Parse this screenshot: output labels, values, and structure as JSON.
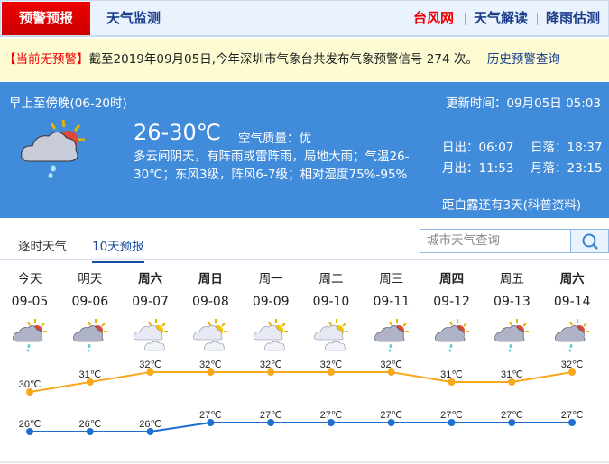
{
  "nav": {
    "warn_tab": "预警预报",
    "monitor_tab": "天气监测",
    "links": [
      {
        "label": "台风网",
        "color": "#ee0000"
      },
      {
        "label": "天气解读",
        "color": "#1a3e8c"
      },
      {
        "label": "降雨估测",
        "color": "#1a3e8c"
      }
    ]
  },
  "warning": {
    "status": "【当前无预警】",
    "text": "截至2019年09月05日,今年深圳市气象台共发布气象预警信号 274 次。",
    "history_link": "历史预警查询"
  },
  "today": {
    "period": "早上至傍晚(06-20时)",
    "updated": "更新时间：09月05日 05:03",
    "temp": "26-30℃",
    "air_quality": "空气质量：优",
    "desc": "多云间阴天，有阵雨或雷阵雨，局地大雨；气温26-30℃；东风3级，阵风6-7级；相对湿度75%-95%",
    "sunrise": "日出：06:07",
    "sunset": "日落：18:37",
    "moonrise": "月出：11:53",
    "moonset": "月落：23:15",
    "solar_term": "距白露还有3天(科普资料)",
    "icon": "cloudy-shower-icon"
  },
  "tabs": {
    "hourly": "逐时天气",
    "ten_day": "10天预报"
  },
  "search": {
    "placeholder": "城市天气查询"
  },
  "forecast": [
    {
      "day": "今天",
      "date": "09-05",
      "high": 30,
      "low": 26,
      "high_label": "30℃",
      "low_label": "26℃",
      "icon": "rain"
    },
    {
      "day": "明天",
      "date": "09-06",
      "high": 31,
      "low": 26,
      "high_label": "31℃",
      "low_label": "26℃",
      "icon": "rain"
    },
    {
      "day": "周六",
      "date": "09-07",
      "high": 32,
      "low": 26,
      "high_label": "32℃",
      "low_label": "26℃",
      "icon": "cloudy"
    },
    {
      "day": "周日",
      "date": "09-08",
      "high": 32,
      "low": 27,
      "high_label": "32℃",
      "low_label": "27℃",
      "icon": "cloudy"
    },
    {
      "day": "周一",
      "date": "09-09",
      "high": 32,
      "low": 27,
      "high_label": "32℃",
      "low_label": "27℃",
      "icon": "cloudy"
    },
    {
      "day": "周二",
      "date": "09-10",
      "high": 32,
      "low": 27,
      "high_label": "32℃",
      "low_label": "27℃",
      "icon": "cloudy"
    },
    {
      "day": "周三",
      "date": "09-11",
      "high": 32,
      "low": 27,
      "high_label": "32℃",
      "low_label": "27℃",
      "icon": "rain"
    },
    {
      "day": "周四",
      "date": "09-12",
      "high": 31,
      "low": 27,
      "high_label": "31℃",
      "low_label": "27℃",
      "icon": "rain"
    },
    {
      "day": "周五",
      "date": "09-13",
      "high": 31,
      "low": 27,
      "high_label": "31℃",
      "low_label": "27℃",
      "icon": "rain"
    },
    {
      "day": "周六",
      "date": "09-14",
      "high": 32,
      "low": 27,
      "high_label": "32℃",
      "low_label": "27℃",
      "icon": "rain"
    }
  ],
  "colors": {
    "high": "#f7a81b",
    "low": "#1e6fd0",
    "panel": "#418bdb",
    "warn_tab": "#d90000"
  }
}
